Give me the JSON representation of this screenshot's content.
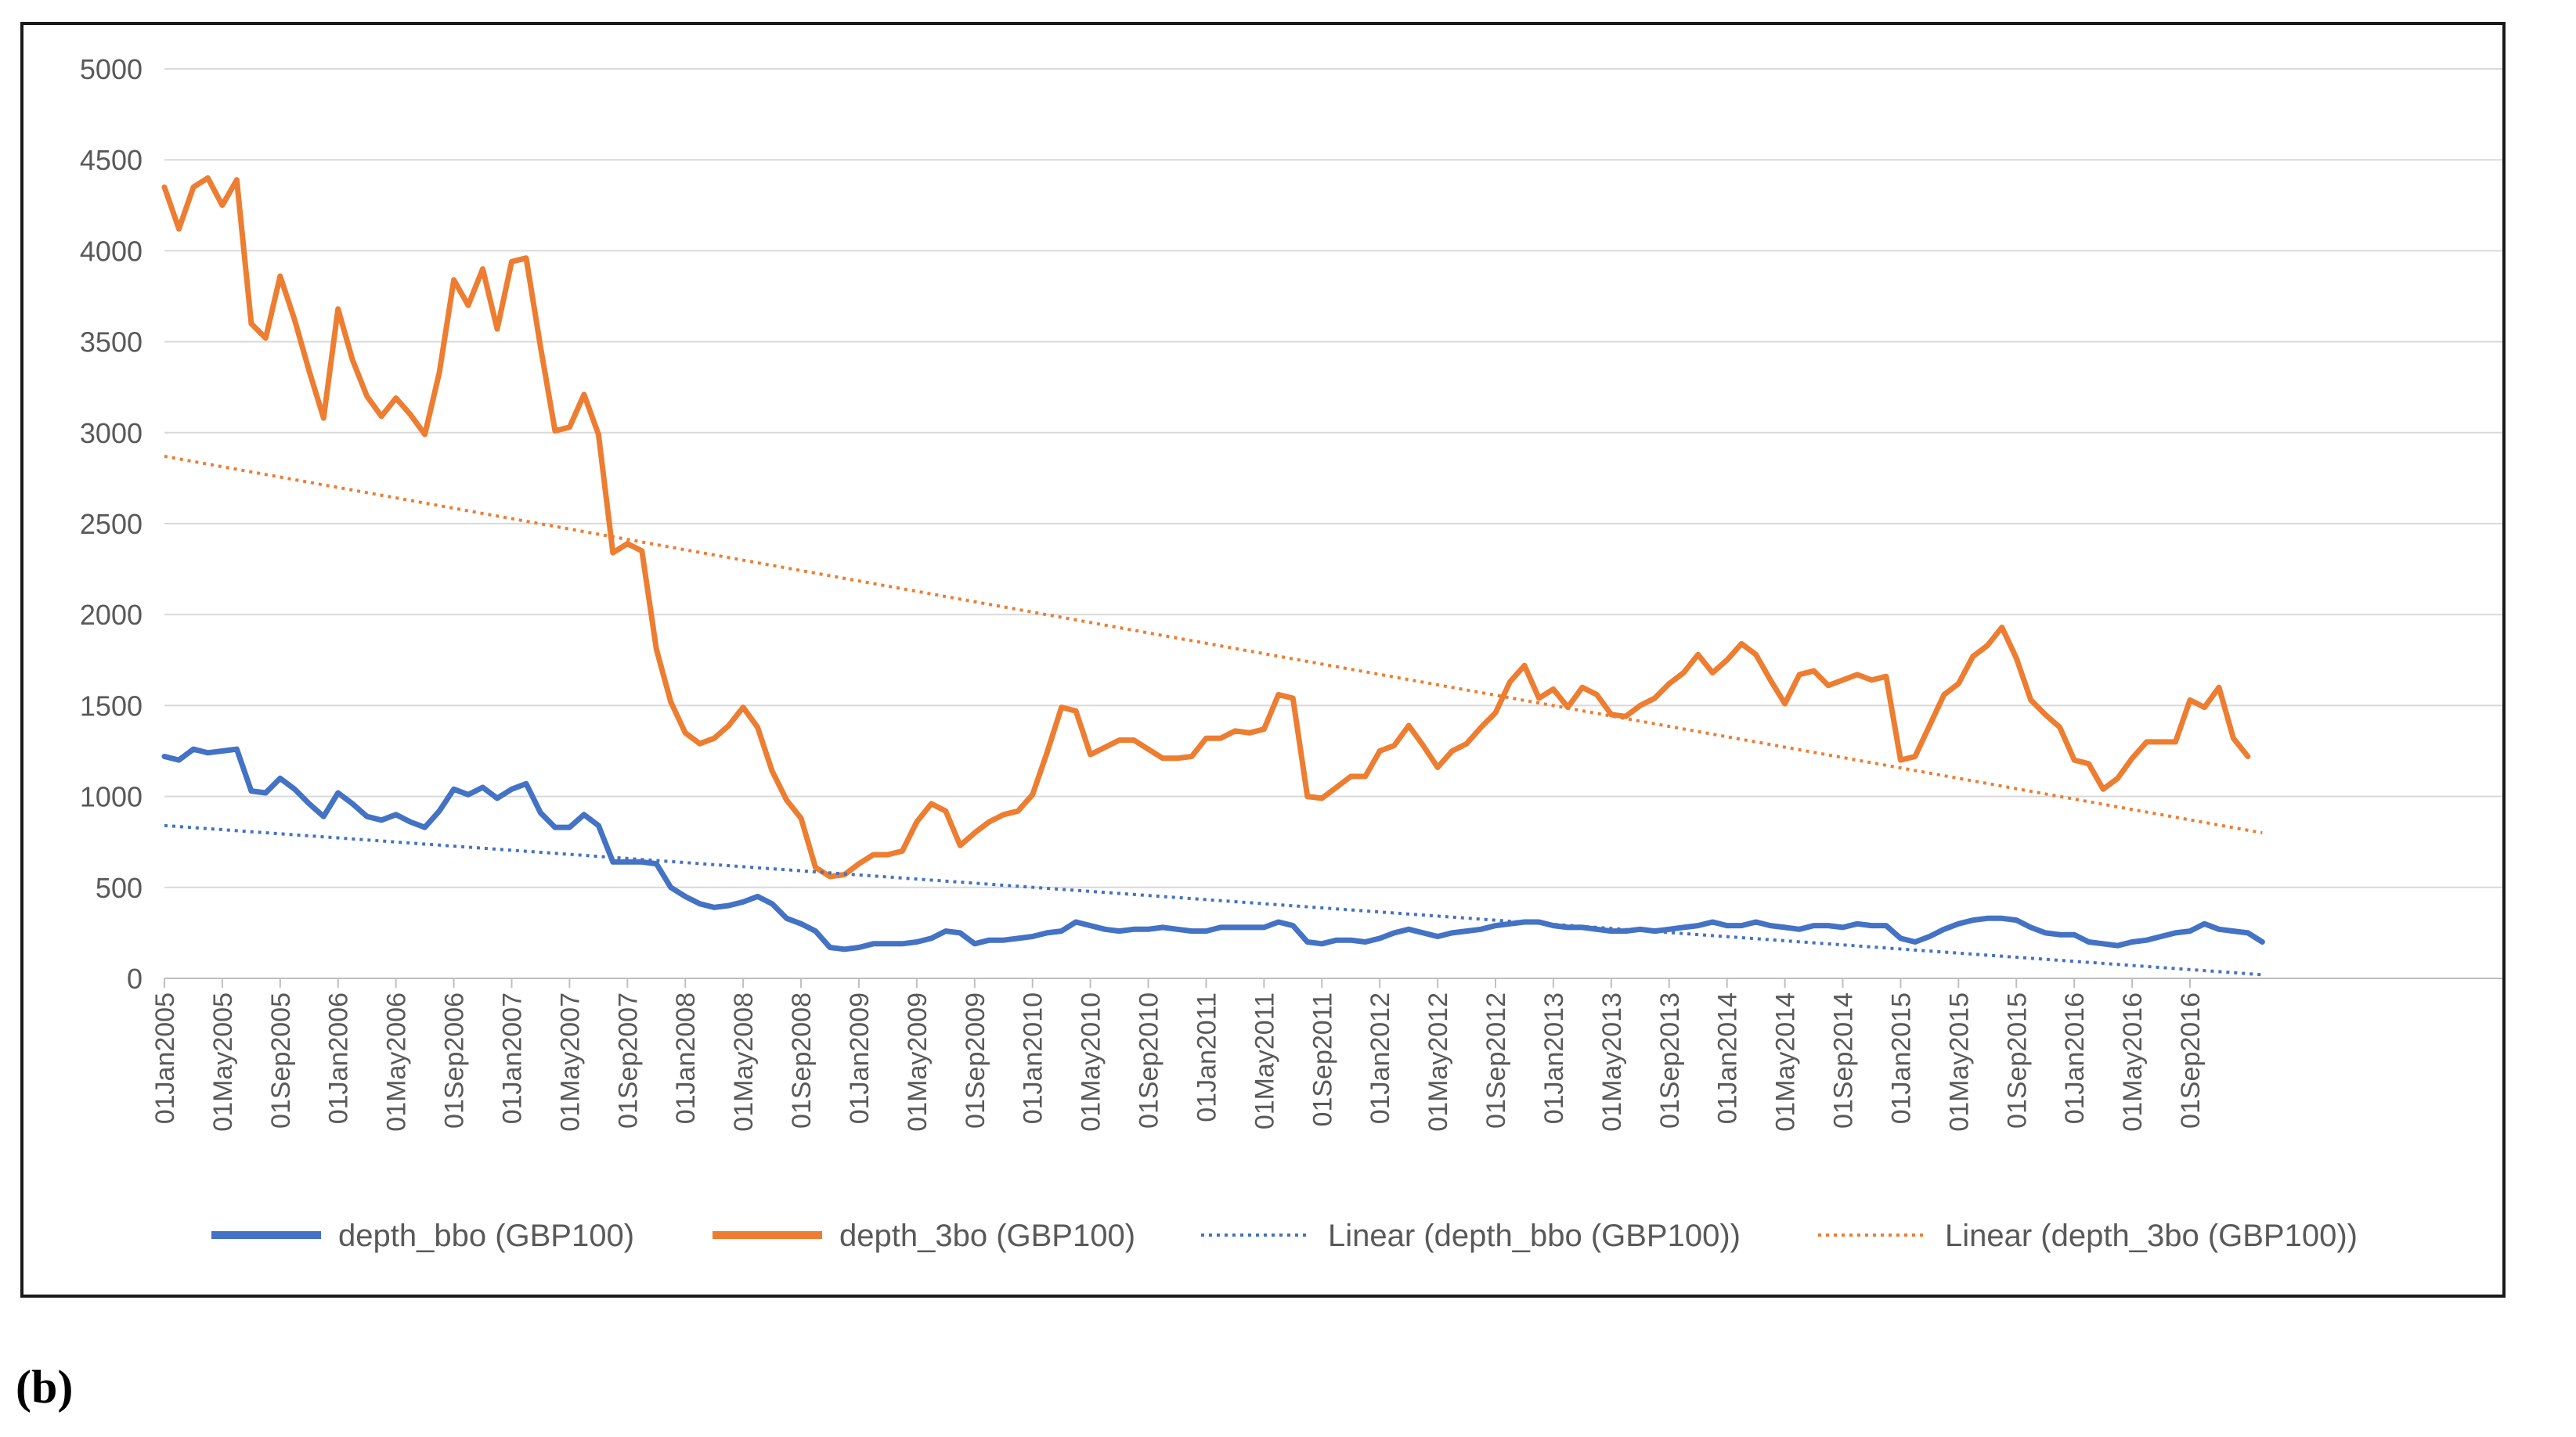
{
  "panel_label": "(b)",
  "colors": {
    "bbo": "#4472C4",
    "threebo": "#ED7D31",
    "grid": "#D9D9D9",
    "axis_text": "#595959"
  },
  "chart_data": {
    "type": "line",
    "title": "",
    "xlabel": "",
    "ylabel": "",
    "ylim": [
      0,
      5000
    ],
    "yticks": [
      0,
      500,
      1000,
      1500,
      2000,
      2500,
      3000,
      3500,
      4000,
      4500,
      5000
    ],
    "x_tick_labels": [
      "01Jan2005",
      "01May2005",
      "01Sep2005",
      "01Jan2006",
      "01May2006",
      "01Sep2006",
      "01Jan2007",
      "01May2007",
      "01Sep2007",
      "01Jan2008",
      "01May2008",
      "01Sep2008",
      "01Jan2009",
      "01May2009",
      "01Sep2009",
      "01Jan2010",
      "01May2010",
      "01Sep2010",
      "01Jan2011",
      "01May2011",
      "01Sep2011",
      "01Jan2012",
      "01May2012",
      "01Sep2012",
      "01Jan2013",
      "01May2013",
      "01Sep2013",
      "01Jan2014",
      "01May2014",
      "01Sep2014",
      "01Jan2015",
      "01May2015",
      "01Sep2015",
      "01Jan2016",
      "01May2016",
      "01Sep2016"
    ],
    "months_per_tick": 4,
    "series": [
      {
        "name": "depth_bbo (GBP100)",
        "style": "solid",
        "color_key": "bbo",
        "values": [
          1220,
          1200,
          1260,
          1240,
          1250,
          1260,
          1030,
          1020,
          1100,
          1040,
          960,
          890,
          1020,
          960,
          890,
          870,
          900,
          860,
          830,
          920,
          1040,
          1010,
          1050,
          990,
          1040,
          1070,
          910,
          830,
          830,
          900,
          840,
          640,
          640,
          640,
          630,
          500,
          450,
          410,
          390,
          400,
          420,
          450,
          410,
          330,
          300,
          260,
          170,
          160,
          170,
          190,
          190,
          190,
          200,
          220,
          260,
          250,
          190,
          210,
          210,
          220,
          230,
          250,
          260,
          310,
          290,
          270,
          260,
          270,
          270,
          280,
          270,
          260,
          260,
          280,
          280,
          280,
          280,
          310,
          290,
          200,
          190,
          210,
          210,
          200,
          220,
          250,
          270,
          250,
          230,
          250,
          260,
          270,
          290,
          300,
          310,
          310,
          290,
          280,
          280,
          270,
          260,
          260,
          270,
          260,
          270,
          280,
          290,
          310,
          290,
          290,
          310,
          290,
          280,
          270,
          290,
          290,
          280,
          300,
          290,
          290,
          220,
          200,
          230,
          270,
          300,
          320,
          330,
          330,
          320,
          280,
          250,
          240,
          240,
          200,
          190,
          180,
          200,
          210,
          230,
          250,
          260,
          300,
          270,
          260,
          250,
          200
        ]
      },
      {
        "name": "depth_3bo (GBP100)",
        "style": "solid",
        "color_key": "threebo",
        "values": [
          4350,
          4120,
          4350,
          4400,
          4250,
          4390,
          3600,
          3520,
          3860,
          3620,
          3340,
          3080,
          3680,
          3400,
          3200,
          3090,
          3190,
          3100,
          2990,
          3330,
          3840,
          3700,
          3900,
          3570,
          3940,
          3960,
          3470,
          3010,
          3030,
          3210,
          2990,
          2340,
          2390,
          2350,
          1810,
          1520,
          1350,
          1290,
          1320,
          1390,
          1490,
          1380,
          1140,
          980,
          880,
          610,
          560,
          570,
          630,
          680,
          680,
          700,
          860,
          960,
          920,
          730,
          800,
          860,
          900,
          920,
          1010,
          1240,
          1490,
          1470,
          1230,
          1270,
          1310,
          1310,
          1260,
          1210,
          1210,
          1220,
          1320,
          1320,
          1360,
          1350,
          1370,
          1560,
          1540,
          1000,
          990,
          1050,
          1110,
          1110,
          1250,
          1280,
          1390,
          1280,
          1160,
          1250,
          1290,
          1380,
          1460,
          1630,
          1720,
          1540,
          1590,
          1490,
          1600,
          1560,
          1450,
          1440,
          1500,
          1540,
          1620,
          1680,
          1780,
          1680,
          1750,
          1840,
          1780,
          1640,
          1510,
          1670,
          1690,
          1610,
          1640,
          1670,
          1640,
          1660,
          1200,
          1220,
          1390,
          1560,
          1620,
          1770,
          1830,
          1930,
          1760,
          1530,
          1450,
          1380,
          1200,
          1180,
          1040,
          1100,
          1210,
          1300,
          1300,
          1300,
          1530,
          1490,
          1600,
          1320,
          1220
        ]
      },
      {
        "name": "Linear (depth_bbo (GBP100))",
        "style": "dotted",
        "color_key": "bbo",
        "trend": [
          840,
          20
        ]
      },
      {
        "name": "Linear (depth_3bo (GBP100))",
        "style": "dotted",
        "color_key": "threebo",
        "trend": [
          2870,
          800
        ]
      }
    ],
    "legend_position": "bottom"
  }
}
